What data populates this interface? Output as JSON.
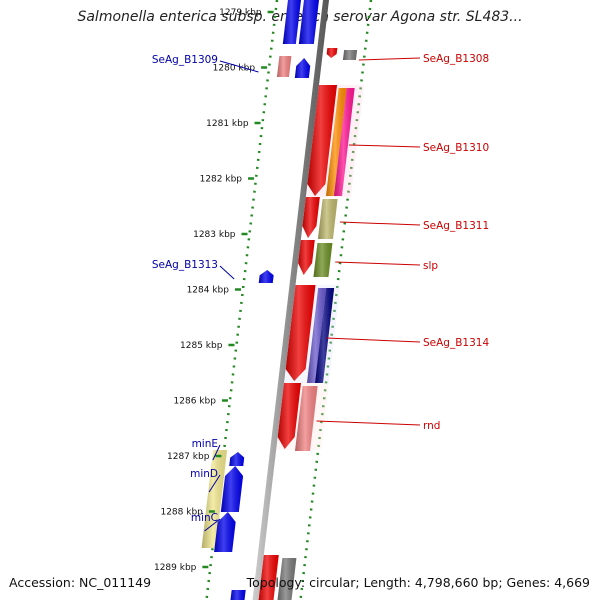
{
  "title": "Salmonella enterica subsp. enterica serovar Agona str. SL483...",
  "footer": {
    "accession": "Accession: NC_011149",
    "topology": "Topology: circular; Length: 4,798,660 bp; Genes: 4,669"
  },
  "ruler_ticks": [
    {
      "label": "1279 kbp",
      "position_kbp": 1279
    },
    {
      "label": "1280 kbp",
      "position_kbp": 1280
    },
    {
      "label": "1281 kbp",
      "position_kbp": 1281
    },
    {
      "label": "1282 kbp",
      "position_kbp": 1282
    },
    {
      "label": "1283 kbp",
      "position_kbp": 1283
    },
    {
      "label": "1284 kbp",
      "position_kbp": 1284
    },
    {
      "label": "1285 kbp",
      "position_kbp": 1285
    },
    {
      "label": "1286 kbp",
      "position_kbp": 1286
    },
    {
      "label": "1287 kbp",
      "position_kbp": 1287
    },
    {
      "label": "1288 kbp",
      "position_kbp": 1288
    },
    {
      "label": "1289 kbp",
      "position_kbp": 1289
    }
  ],
  "gene_labels": [
    {
      "name": "SeAg_B1308",
      "strand": "forward",
      "color": "#cc0000"
    },
    {
      "name": "SeAg_B1309",
      "strand": "reverse",
      "color": "#0000aa"
    },
    {
      "name": "SeAg_B1310",
      "strand": "forward",
      "color": "#cc0000"
    },
    {
      "name": "SeAg_B1311",
      "strand": "forward",
      "color": "#cc0000"
    },
    {
      "name": "slp",
      "strand": "forward",
      "color": "#cc0000"
    },
    {
      "name": "SeAg_B1313",
      "strand": "reverse",
      "color": "#0000aa"
    },
    {
      "name": "SeAg_B1314",
      "strand": "forward",
      "color": "#cc0000"
    },
    {
      "name": "rnd",
      "strand": "forward",
      "color": "#cc0000"
    },
    {
      "name": "minE",
      "strand": "reverse",
      "color": "#0000aa"
    },
    {
      "name": "minD",
      "strand": "reverse",
      "color": "#0000aa"
    },
    {
      "name": "minC",
      "strand": "reverse",
      "color": "#0000aa"
    }
  ],
  "colors": {
    "forward_cds": "#ee0000",
    "reverse_cds": "#0000ee",
    "backbone": "#888888",
    "ruler_tick": "#228822",
    "cog_orange": "#ff8c00",
    "cog_magenta": "#ff1493",
    "cog_khaki": "#bdb76b",
    "cog_olive": "#6b8e23",
    "cog_slate": "#6a5acd",
    "cog_navy": "#000080",
    "cog_pink": "#f08080",
    "cog_yellow": "#f0e68c",
    "cog_gray": "#777777"
  }
}
